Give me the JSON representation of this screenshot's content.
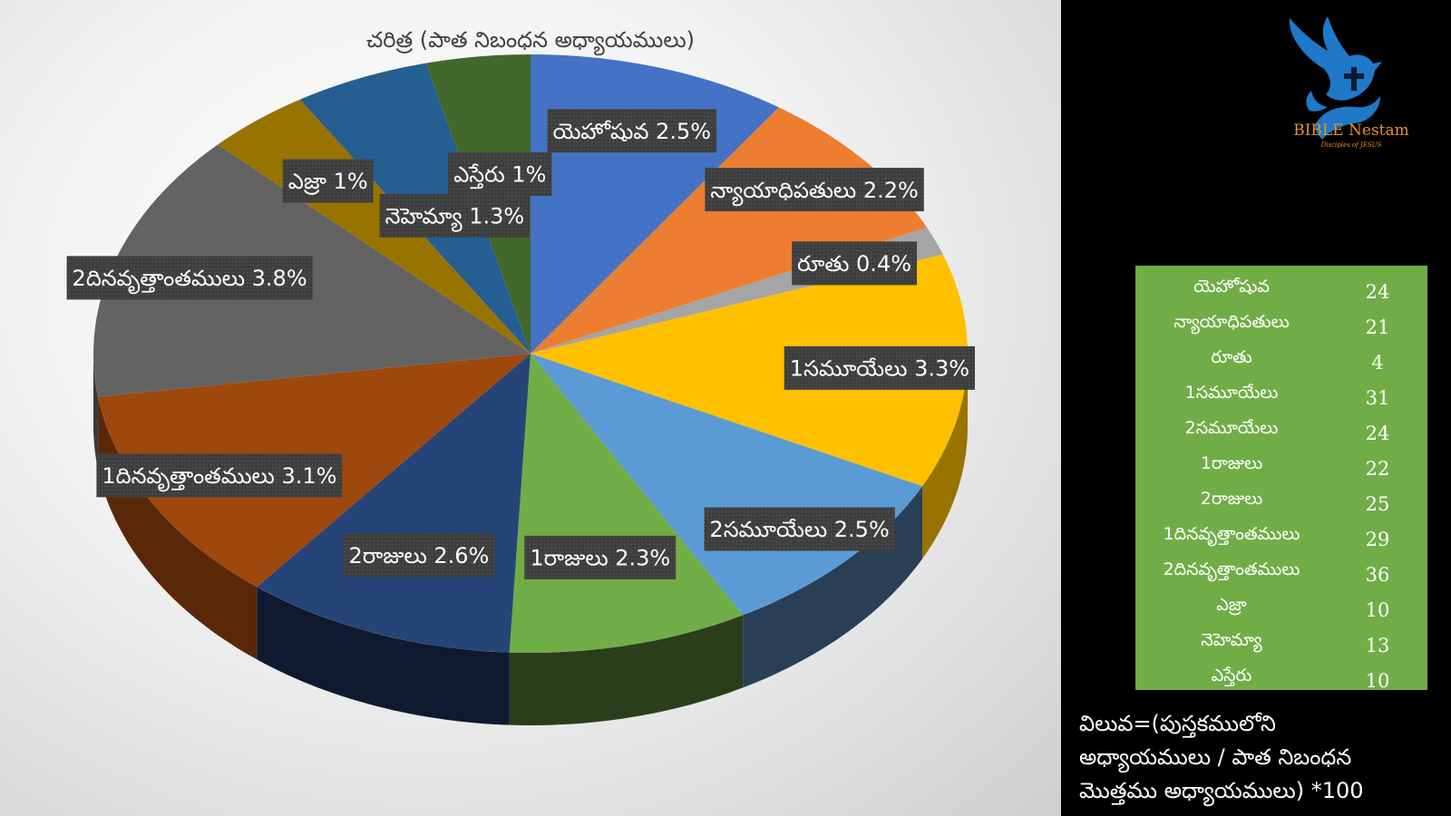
{
  "chart_data": {
    "type": "pie",
    "title": "చరిత్ర (పాత నిబంధన అధ్యాయములు)",
    "slices": [
      {
        "label": "యెహోషువ",
        "value": 2.5,
        "color": "#4472c4",
        "side_color": "#2a4677"
      },
      {
        "label": "న్యాయాధిపతులు",
        "value": 2.2,
        "color": "#ed7d31",
        "side_color": "#8e4a1d"
      },
      {
        "label": "రూతు",
        "value": 0.4,
        "color": "#a5a5a5",
        "side_color": "#636363"
      },
      {
        "label": "1సమూయేలు",
        "value": 3.3,
        "color": "#ffc000",
        "side_color": "#997300"
      },
      {
        "label": "2సమూయేలు",
        "value": 2.5,
        "color": "#5b9bd5",
        "side_color": "#283f56"
      },
      {
        "label": "1రాజులు",
        "value": 2.3,
        "color": "#70ad47",
        "side_color": "#2a3e1c"
      },
      {
        "label": "2రాజులు",
        "value": 2.6,
        "color": "#264478",
        "side_color": "#0f1a30"
      },
      {
        "label": "1దినవృత్తాంతములు",
        "value": 3.1,
        "color": "#9e480e",
        "side_color": "#5a2808"
      },
      {
        "label": "2దినవృత్తాంతములు",
        "value": 3.8,
        "color": "#636363",
        "side_color": "#3a3a3a"
      },
      {
        "label": "ఎజ్రా",
        "value": 1,
        "color": "#997300",
        "side_color": "#5c4500"
      },
      {
        "label": "నెహెమ్యా",
        "value": 1.3,
        "color": "#255e91",
        "side_color": "#163857"
      },
      {
        "label": "ఎస్తేరు",
        "value": 1,
        "color": "#43682b",
        "side_color": "#283e1a"
      }
    ],
    "data_labels": [
      "యెహోషువ 2.5%",
      "న్యాయాధిపతులు 2.2%",
      "రూతు 0.4%",
      "1సమూయేలు 3.3%",
      "2సమూయేలు 2.5%",
      "1రాజులు 2.3%",
      "2రాజులు 2.6%",
      "1దినవృత్తాంతములు 3.1%",
      "2దినవృత్తాంతములు 3.8%",
      "ఎజ్రా 1%",
      "నెహెమ్యా 1.3%",
      "ఎస్తేరు 1%"
    ],
    "legend": "none"
  },
  "logo": {
    "name": "BIBLE Nestam",
    "tagline": "Disciples of JESUS",
    "color": "#e8902a",
    "icon": "dove-cross-hands-icon"
  },
  "table": {
    "background": "#71ad47",
    "rows": [
      {
        "book": "యెహోషువ",
        "chapters": "24"
      },
      {
        "book": "న్యాయాధిపతులు",
        "chapters": "21"
      },
      {
        "book": "రూతు",
        "chapters": "4"
      },
      {
        "book": "1సమూయేలు",
        "chapters": "31"
      },
      {
        "book": "2సమూయేలు",
        "chapters": "24"
      },
      {
        "book": "1రాజులు",
        "chapters": "22"
      },
      {
        "book": "2రాజులు",
        "chapters": "25"
      },
      {
        "book": "1దినవృత్తాంతములు",
        "chapters": "29"
      },
      {
        "book": "2దినవృత్తాంతములు",
        "chapters": "36"
      },
      {
        "book": "ఎజ్రా",
        "chapters": "10"
      },
      {
        "book": "నెహెమ్యా",
        "chapters": "13"
      },
      {
        "book": "ఎస్తేరు",
        "chapters": "10"
      }
    ]
  },
  "formula": {
    "line1": "విలువ=(పుస్తకములోని",
    "line2": "అధ్యాయములు / పాత నిబంధన",
    "line3": "మొత్తము అధ్యాయములు) *100"
  }
}
